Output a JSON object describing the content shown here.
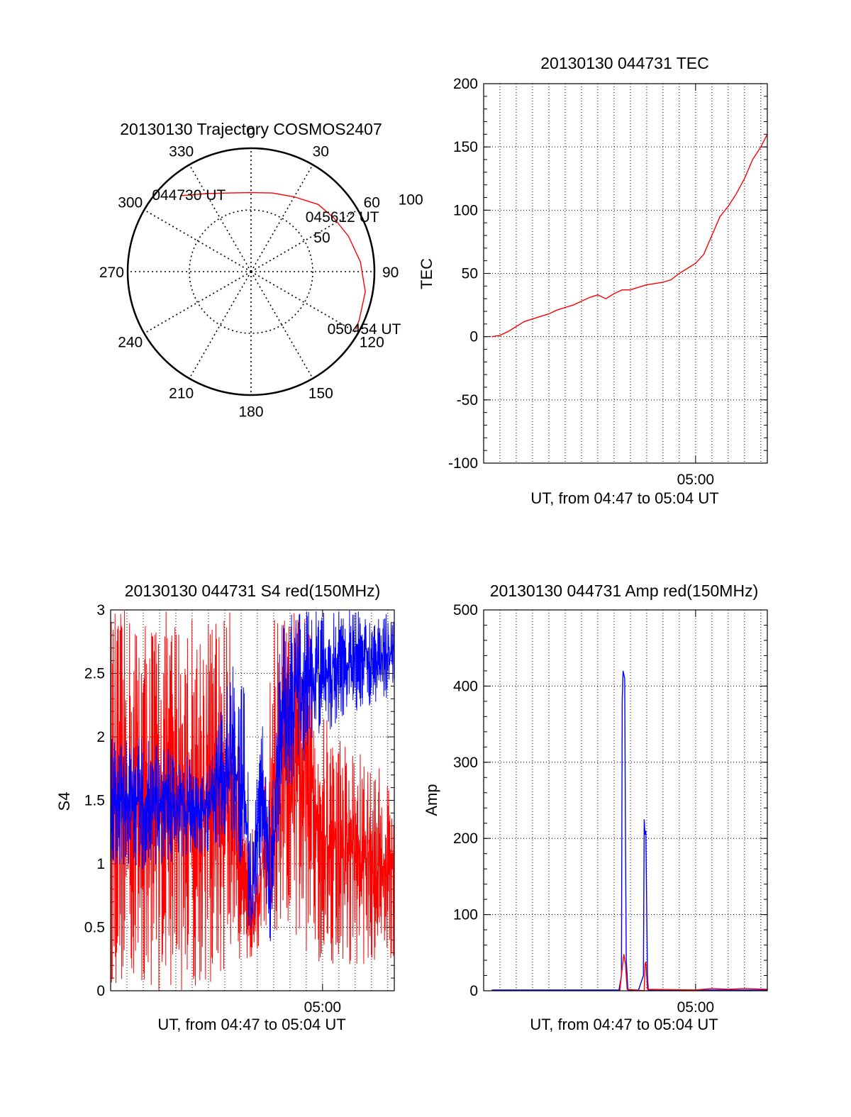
{
  "chart_data": [
    {
      "type": "polar",
      "title": "20130130 Trajectory COSMOS2407",
      "azimuth_labels": [
        "0",
        "30",
        "60",
        "90",
        "120",
        "150",
        "180",
        "210",
        "240",
        "270",
        "300",
        "330"
      ],
      "azimuths": [
        0,
        30,
        60,
        90,
        120,
        150,
        180,
        210,
        240,
        270,
        300,
        330
      ],
      "radial_labels": [
        "50",
        "100"
      ],
      "radial_values": [
        50,
        100
      ],
      "rlim": [
        0,
        100
      ],
      "series": [
        {
          "color": "#ff0000",
          "points": [
            {
              "az": 317,
              "r": 84
            },
            {
              "az": 330,
              "r": 73
            },
            {
              "az": 345,
              "r": 66
            },
            {
              "az": 0,
              "r": 64
            },
            {
              "az": 15,
              "r": 66
            },
            {
              "az": 30,
              "r": 70
            },
            {
              "az": 45,
              "r": 77
            },
            {
              "az": 57,
              "r": 80
            },
            {
              "az": 70,
              "r": 84
            },
            {
              "az": 85,
              "r": 89
            },
            {
              "az": 100,
              "r": 94
            },
            {
              "az": 114,
              "r": 96
            },
            {
              "az": 119,
              "r": 97
            }
          ]
        }
      ],
      "annotations": [
        {
          "text": "044730 UT",
          "az": 317,
          "r": 84
        },
        {
          "text": "045612 UT",
          "az": 57,
          "r": 80
        },
        {
          "text": "050454 UT",
          "az": 119,
          "r": 97
        }
      ]
    },
    {
      "type": "line",
      "title": "20130130 044731 TEC",
      "ylabel": "TEC",
      "xlabel": "UT, from 04:47 to 05:04 UT",
      "xlim": [
        0,
        17.4
      ],
      "ylim": [
        -100,
        200
      ],
      "y_ticks": [
        "-100",
        "-50",
        "0",
        "50",
        "100",
        "150",
        "200"
      ],
      "x_tick_label": "05:00",
      "x_tick_value": 13,
      "grid": true,
      "series": [
        {
          "color": "#ff0000",
          "x": [
            0.5,
            1.0,
            1.5,
            2.0,
            2.5,
            3.0,
            3.5,
            4.0,
            4.5,
            5.0,
            5.5,
            6.0,
            6.5,
            7.0,
            7.5,
            8.0,
            8.5,
            9.0,
            9.5,
            10.0,
            10.5,
            11.0,
            11.5,
            12.0,
            12.5,
            13.0,
            13.5,
            14.0,
            14.5,
            15.0,
            15.5,
            16.0,
            16.5,
            17.0,
            17.4
          ],
          "y": [
            0,
            1,
            4,
            8,
            12,
            14,
            16,
            18,
            21,
            23,
            25,
            28,
            31,
            33,
            30,
            34,
            37,
            37,
            39,
            41,
            42,
            43,
            45,
            50,
            54,
            58,
            65,
            80,
            95,
            103,
            113,
            125,
            140,
            150,
            160
          ]
        }
      ]
    },
    {
      "type": "line",
      "title": "20130130 044731 S4 red(150MHz)",
      "ylabel": "S4",
      "xlabel": "UT, from 04:47 to 05:04 UT",
      "xlim": [
        0,
        17.4
      ],
      "ylim": [
        0,
        3
      ],
      "y_ticks": [
        "0",
        "0.5",
        "1",
        "1.5",
        "2",
        "2.5",
        "3"
      ],
      "x_tick_label": "05:00",
      "x_tick_value": 13,
      "grid": true,
      "series": [
        {
          "color": "#ff0000",
          "envelope": [
            {
              "x": 0.0,
              "low": 0.0,
              "high": 3.0
            },
            {
              "x": 2.0,
              "low": 0.0,
              "high": 3.0
            },
            {
              "x": 4.0,
              "low": 0.0,
              "high": 3.0
            },
            {
              "x": 6.0,
              "low": 0.0,
              "high": 3.0
            },
            {
              "x": 7.5,
              "low": 0.1,
              "high": 3.0
            },
            {
              "x": 8.2,
              "low": 0.3,
              "high": 1.2
            },
            {
              "x": 8.7,
              "low": 0.05,
              "high": 1.3
            },
            {
              "x": 9.3,
              "low": 0.5,
              "high": 1.3
            },
            {
              "x": 10.0,
              "low": 0.1,
              "high": 3.0
            },
            {
              "x": 11.0,
              "low": 0.3,
              "high": 3.0
            },
            {
              "x": 12.0,
              "low": 0.3,
              "high": 3.0
            },
            {
              "x": 13.0,
              "low": 0.2,
              "high": 2.2
            },
            {
              "x": 14.5,
              "low": 0.2,
              "high": 2.0
            },
            {
              "x": 16.0,
              "low": 0.2,
              "high": 1.8
            },
            {
              "x": 17.4,
              "low": 0.2,
              "high": 1.7
            }
          ]
        },
        {
          "color": "#0000ff",
          "envelope": [
            {
              "x": 0.0,
              "low": 1.0,
              "high": 2.0
            },
            {
              "x": 2.0,
              "low": 0.95,
              "high": 2.0
            },
            {
              "x": 4.0,
              "low": 1.0,
              "high": 1.9
            },
            {
              "x": 6.0,
              "low": 1.1,
              "high": 1.8
            },
            {
              "x": 7.5,
              "low": 1.1,
              "high": 2.6
            },
            {
              "x": 8.2,
              "low": 0.9,
              "high": 2.5
            },
            {
              "x": 8.6,
              "low": 0.15,
              "high": 1.2
            },
            {
              "x": 9.3,
              "low": 1.0,
              "high": 2.2
            },
            {
              "x": 9.8,
              "low": 0.1,
              "high": 1.5
            },
            {
              "x": 10.5,
              "low": 1.5,
              "high": 3.0
            },
            {
              "x": 12.0,
              "low": 1.8,
              "high": 3.0
            },
            {
              "x": 13.0,
              "low": 2.0,
              "high": 3.0
            },
            {
              "x": 15.0,
              "low": 2.2,
              "high": 3.0
            },
            {
              "x": 17.4,
              "low": 2.3,
              "high": 3.0
            }
          ]
        }
      ]
    },
    {
      "type": "line",
      "title": "20130130 044731 Amp red(150MHz)",
      "ylabel": "Amp",
      "xlabel": "UT, from 04:47 to 05:04 UT",
      "xlim": [
        0,
        17.4
      ],
      "ylim": [
        0,
        500
      ],
      "y_ticks": [
        "0",
        "100",
        "200",
        "300",
        "400",
        "500"
      ],
      "x_tick_label": "05:00",
      "x_tick_value": 13,
      "grid": true,
      "series": [
        {
          "color": "#0000ff",
          "x": [
            0.5,
            8.3,
            8.45,
            8.5,
            8.55,
            8.65,
            8.7,
            8.75,
            8.85,
            9.5,
            9.8,
            9.85,
            9.9,
            9.95,
            10.05,
            10.1,
            17.4
          ],
          "y": [
            1,
            1,
            20,
            380,
            420,
            410,
            200,
            40,
            1,
            1,
            20,
            225,
            205,
            210,
            20,
            1,
            1
          ]
        },
        {
          "color": "#ff0000",
          "x": [
            8.35,
            8.5,
            8.6,
            8.7,
            8.8,
            9.85,
            9.9,
            9.95,
            10.05,
            13.0,
            14.0,
            15.0,
            16.0,
            17.4
          ],
          "y": [
            0,
            30,
            48,
            35,
            2,
            0,
            35,
            38,
            2,
            1,
            3,
            2,
            3,
            2
          ]
        }
      ]
    }
  ]
}
